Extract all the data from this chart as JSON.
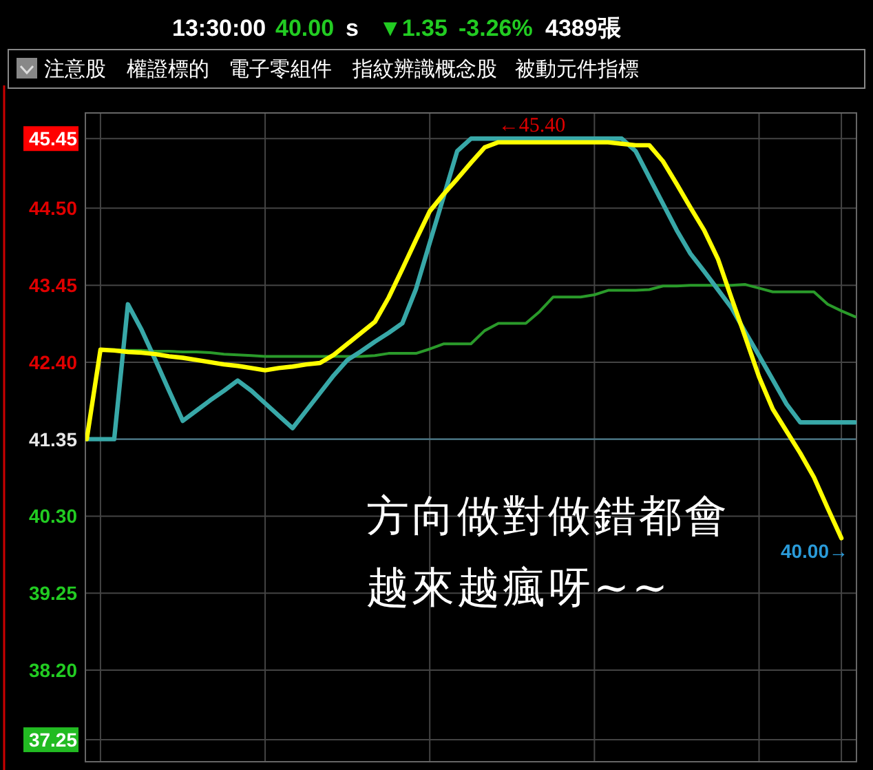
{
  "chart_data": {
    "type": "line",
    "annotations": [
      "13:30:00",
      "40.00",
      "s",
      "▼1.35",
      "-3.26%",
      "4389張",
      "注意股",
      "權證標的",
      "電子零組件",
      "指紋辨識概念股",
      "被動元件指標",
      {
        "text": "←45.40",
        "y": 45.4
      },
      "40.00→",
      "方向做對做錯都會",
      "越來越瘋呀~~"
    ],
    "categories": [
      null,
      null,
      null,
      null,
      null,
      null,
      null,
      null,
      null,
      null,
      null,
      null,
      null,
      null,
      null,
      null,
      null,
      null,
      null,
      null,
      null,
      null,
      null,
      null,
      null,
      null,
      null,
      null,
      null,
      null,
      null,
      null,
      null,
      null,
      null,
      null,
      null,
      null,
      null,
      null,
      null,
      null,
      null,
      null,
      null,
      null,
      null,
      null,
      null,
      null,
      null,
      null,
      null,
      null,
      null,
      null,
      null
    ],
    "series": [
      {
        "color": "#2a9a2a",
        "values": [
          null,
          42.57,
          42.57,
          42.56,
          42.56,
          42.55,
          42.55,
          42.54,
          42.54,
          42.53,
          42.51,
          42.5,
          42.49,
          42.48,
          42.48,
          42.48,
          42.48,
          42.48,
          42.48,
          42.48,
          42.48,
          42.49,
          42.52,
          42.52,
          42.52,
          42.58,
          42.65,
          42.65,
          42.65,
          42.83,
          42.93,
          42.93,
          42.93,
          43.09,
          43.29,
          43.29,
          43.29,
          43.32,
          43.38,
          43.38,
          43.38,
          43.39,
          43.44,
          43.44,
          43.45,
          43.45,
          43.45,
          43.45,
          43.46,
          43.41,
          43.36,
          43.36,
          43.36,
          43.36,
          43.19,
          43.1,
          43.02
        ]
      },
      {
        "color": "#38a8a8",
        "values": [
          41.35,
          41.35,
          41.35,
          43.19,
          42.84,
          42.43,
          42.01,
          41.6,
          41.74,
          41.88,
          42.01,
          42.15,
          42.01,
          41.84,
          41.67,
          41.5,
          41.74,
          41.98,
          42.22,
          42.43,
          42.55,
          42.68,
          42.8,
          42.93,
          43.4,
          44.03,
          44.65,
          45.28,
          45.45,
          45.45,
          45.45,
          45.45,
          45.45,
          45.45,
          45.45,
          45.45,
          45.45,
          45.45,
          45.45,
          45.45,
          45.28,
          44.92,
          44.56,
          44.2,
          43.88,
          43.64,
          43.39,
          43.14,
          42.81,
          42.49,
          42.16,
          41.83,
          41.58,
          41.58,
          41.58,
          41.58,
          41.58
        ]
      },
      {
        "color": "#ffff00",
        "values": [
          41.35,
          42.57,
          42.56,
          42.54,
          42.53,
          42.51,
          42.48,
          42.46,
          42.43,
          42.4,
          42.37,
          42.35,
          42.32,
          42.29,
          42.32,
          42.34,
          42.37,
          42.39,
          42.5,
          42.65,
          42.8,
          42.95,
          43.28,
          43.67,
          44.07,
          44.46,
          44.69,
          44.9,
          45.12,
          45.33,
          45.4,
          45.4,
          45.4,
          45.4,
          45.4,
          45.4,
          45.4,
          45.4,
          45.4,
          45.38,
          45.36,
          45.36,
          45.14,
          44.83,
          44.51,
          44.2,
          43.81,
          43.27,
          42.74,
          42.2,
          41.76,
          41.46,
          41.16,
          40.83,
          40.41,
          40.0,
          null
        ]
      }
    ],
    "ylim": [
      36.95,
      45.8
    ],
    "yticks": [
      {
        "value": 37.25,
        "label": "37.25"
      },
      {
        "value": 38.2,
        "label": "38.20"
      },
      {
        "value": 39.25,
        "label": "39.25"
      },
      {
        "value": 40.3,
        "label": "40.30"
      },
      {
        "value": 41.35,
        "label": "41.35"
      },
      {
        "value": 42.4,
        "label": "42.40"
      },
      {
        "value": 43.45,
        "label": "43.45"
      },
      {
        "value": 44.5,
        "label": "44.50"
      },
      {
        "value": 45.45,
        "label": "45.45"
      }
    ],
    "ref_lines": [
      {
        "axis": "y",
        "value": 41.35,
        "color": "#4a7a8a"
      }
    ],
    "grid": true,
    "marker": "none",
    "line_style": "solid"
  }
}
